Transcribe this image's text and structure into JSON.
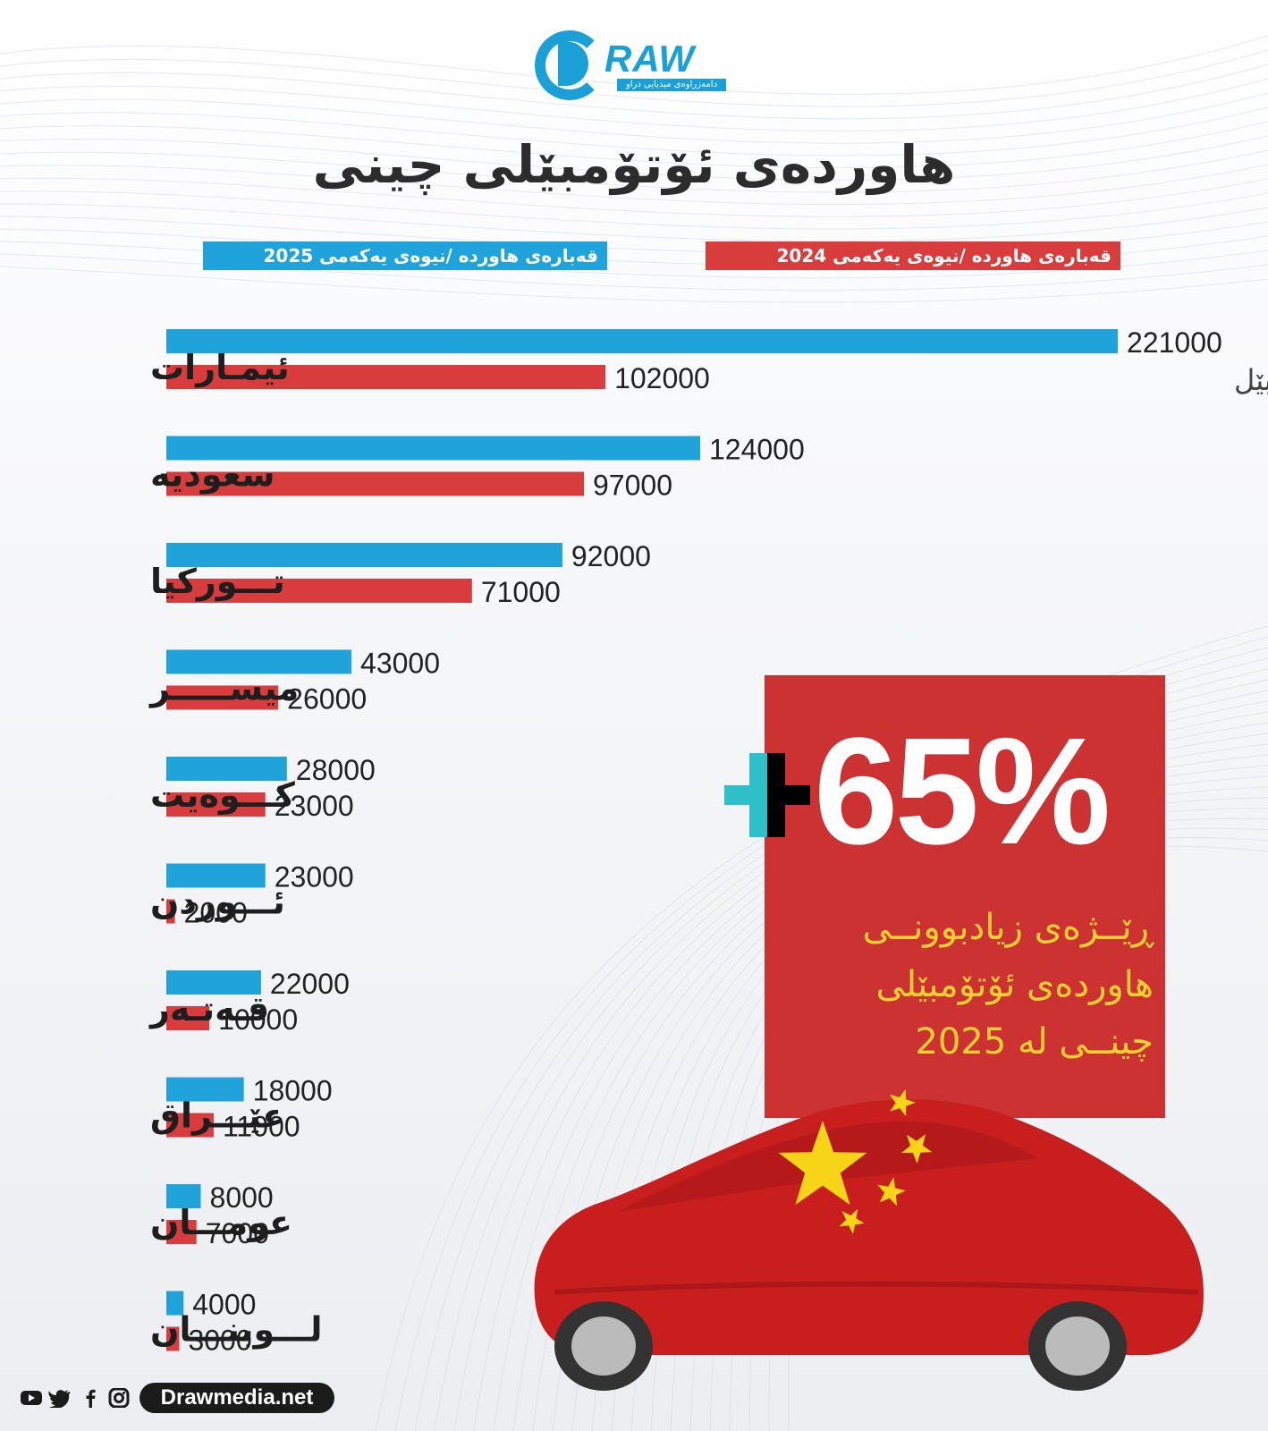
{
  "header": {
    "logo_text": "RAW",
    "logo_tagline": "دامەزراوەی میدیایی دراو",
    "title": "هاوردەی ئۆتۆمبێلی چینی"
  },
  "legend": {
    "label_2025": "قەبارەی هاوردە /نیوەی یەکەمی 2025",
    "label_2024": "قەبارەی هاوردە /نیوەی یەکەمی 2024"
  },
  "colors": {
    "series_2025": "#1fa3da",
    "series_2024": "#d83c3c",
    "promo_bg": "#cc3232",
    "promo_text": "#f6d130"
  },
  "chart_data": {
    "type": "bar",
    "orientation": "horizontal",
    "categories": [
      "ئیمـارات",
      "سعوديه",
      "تـــوركيا",
      "ميســـــر",
      "كـــوەيت",
      "ئـــوردن",
      "قـەتـەر",
      "عێـــراق",
      "عومـــان",
      "لـــوبنـــان"
    ],
    "series": [
      {
        "name": "قەبارەی هاوردە /نیوەی یەکەمی 2025",
        "values": [
          221000,
          124000,
          92000,
          43000,
          28000,
          23000,
          22000,
          18000,
          8000,
          4000
        ]
      },
      {
        "name": "قەبارەی هاوردە /نیوەی یەکەمی 2024",
        "values": [
          102000,
          97000,
          71000,
          26000,
          23000,
          2000,
          10000,
          11000,
          7000,
          3000
        ]
      }
    ],
    "unit_label": "ئۆتۆمبێل",
    "xlim": [
      0,
      221000
    ],
    "grid": false,
    "legend_position": "top"
  },
  "promo": {
    "percent": "65%",
    "text_lines": [
      "ڕێــژەی زیادبوونــی",
      "هاوردەی ئۆتۆمبێلی",
      "چینــی لە 2025"
    ]
  },
  "footer": {
    "icons": [
      "youtube-icon",
      "twitter-icon",
      "facebook-icon",
      "instagram-icon"
    ],
    "site": "Drawmedia.net"
  }
}
